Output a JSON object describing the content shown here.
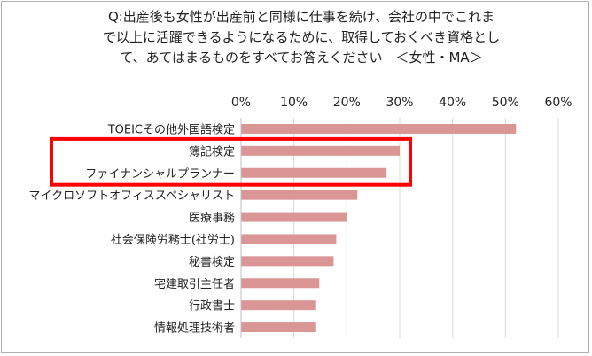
{
  "title_lines": [
    "Q:出産後も女性が出産前と同様に仕事を続け、会社の中でこれま",
    "で以上に活躍できるようになるために、取得しておくべき資格とし",
    "て、あてはまるものをすべてお答えください　＜女性・MA＞"
  ],
  "chart_data": {
    "type": "bar",
    "orientation": "horizontal",
    "title": "Q:出産後も女性が出産前と同様に仕事を続け、会社の中でこれまで以上に活躍できるようになるために、取得しておくべき資格として、あてはまるものをすべてお答えください　＜女性・MA＞",
    "categories": [
      "TOEICその他外国語検定",
      "簿記検定",
      "ファイナンシャルプランナー",
      "マイクロソフトオフィススペシャリスト",
      "医療事務",
      "社会保険労務士(社労士)",
      "秘書検定",
      "宅建取引主任者",
      "行政書士",
      "情報処理技術者"
    ],
    "values": [
      52,
      30,
      27.5,
      22,
      20,
      18,
      17.5,
      14.8,
      14.2,
      14.2
    ],
    "xlim": [
      0,
      60
    ],
    "x_ticks": [
      "0%",
      "10%",
      "20%",
      "30%",
      "40%",
      "50%",
      "60%"
    ],
    "x_axis_position": "top",
    "grid": "vertical",
    "bar_color": "#d99694",
    "grid_color": "#d9d9d9",
    "highlight": {
      "categories": [
        "簿記検定",
        "ファイナンシャルプランナー"
      ],
      "color": "#ff0000"
    }
  }
}
